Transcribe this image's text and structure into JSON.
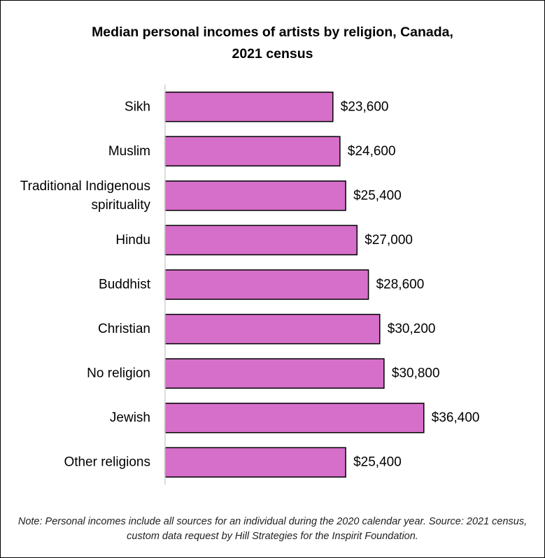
{
  "title": {
    "line1": "Median personal incomes of artists by religion, Canada,",
    "line2": "2021 census"
  },
  "chart_data": {
    "type": "bar",
    "orientation": "horizontal",
    "categories": [
      [
        "Sikh"
      ],
      [
        "Muslim"
      ],
      [
        "Traditional Indigenous",
        "spirituality"
      ],
      [
        "Hindu"
      ],
      [
        "Buddhist"
      ],
      [
        "Christian"
      ],
      [
        "No religion"
      ],
      [
        "Jewish"
      ],
      [
        "Other religions"
      ]
    ],
    "values": [
      23600,
      24600,
      25400,
      27000,
      28600,
      30200,
      30800,
      36400,
      25400
    ],
    "value_labels": [
      "$23,600",
      "$24,600",
      "$25,400",
      "$27,000",
      "$28,600",
      "$30,200",
      "$30,800",
      "$36,400",
      "$25,400"
    ],
    "xlim": [
      0,
      37500
    ],
    "bar_color": "#d66fc9",
    "bar_edge_color": "#000000",
    "grid": false,
    "legend": false
  },
  "note": "Note: Personal incomes include all sources for an individual during the 2020 calendar year. Source: 2021 census, custom data request by Hill Strategies for the Inspirit Foundation."
}
